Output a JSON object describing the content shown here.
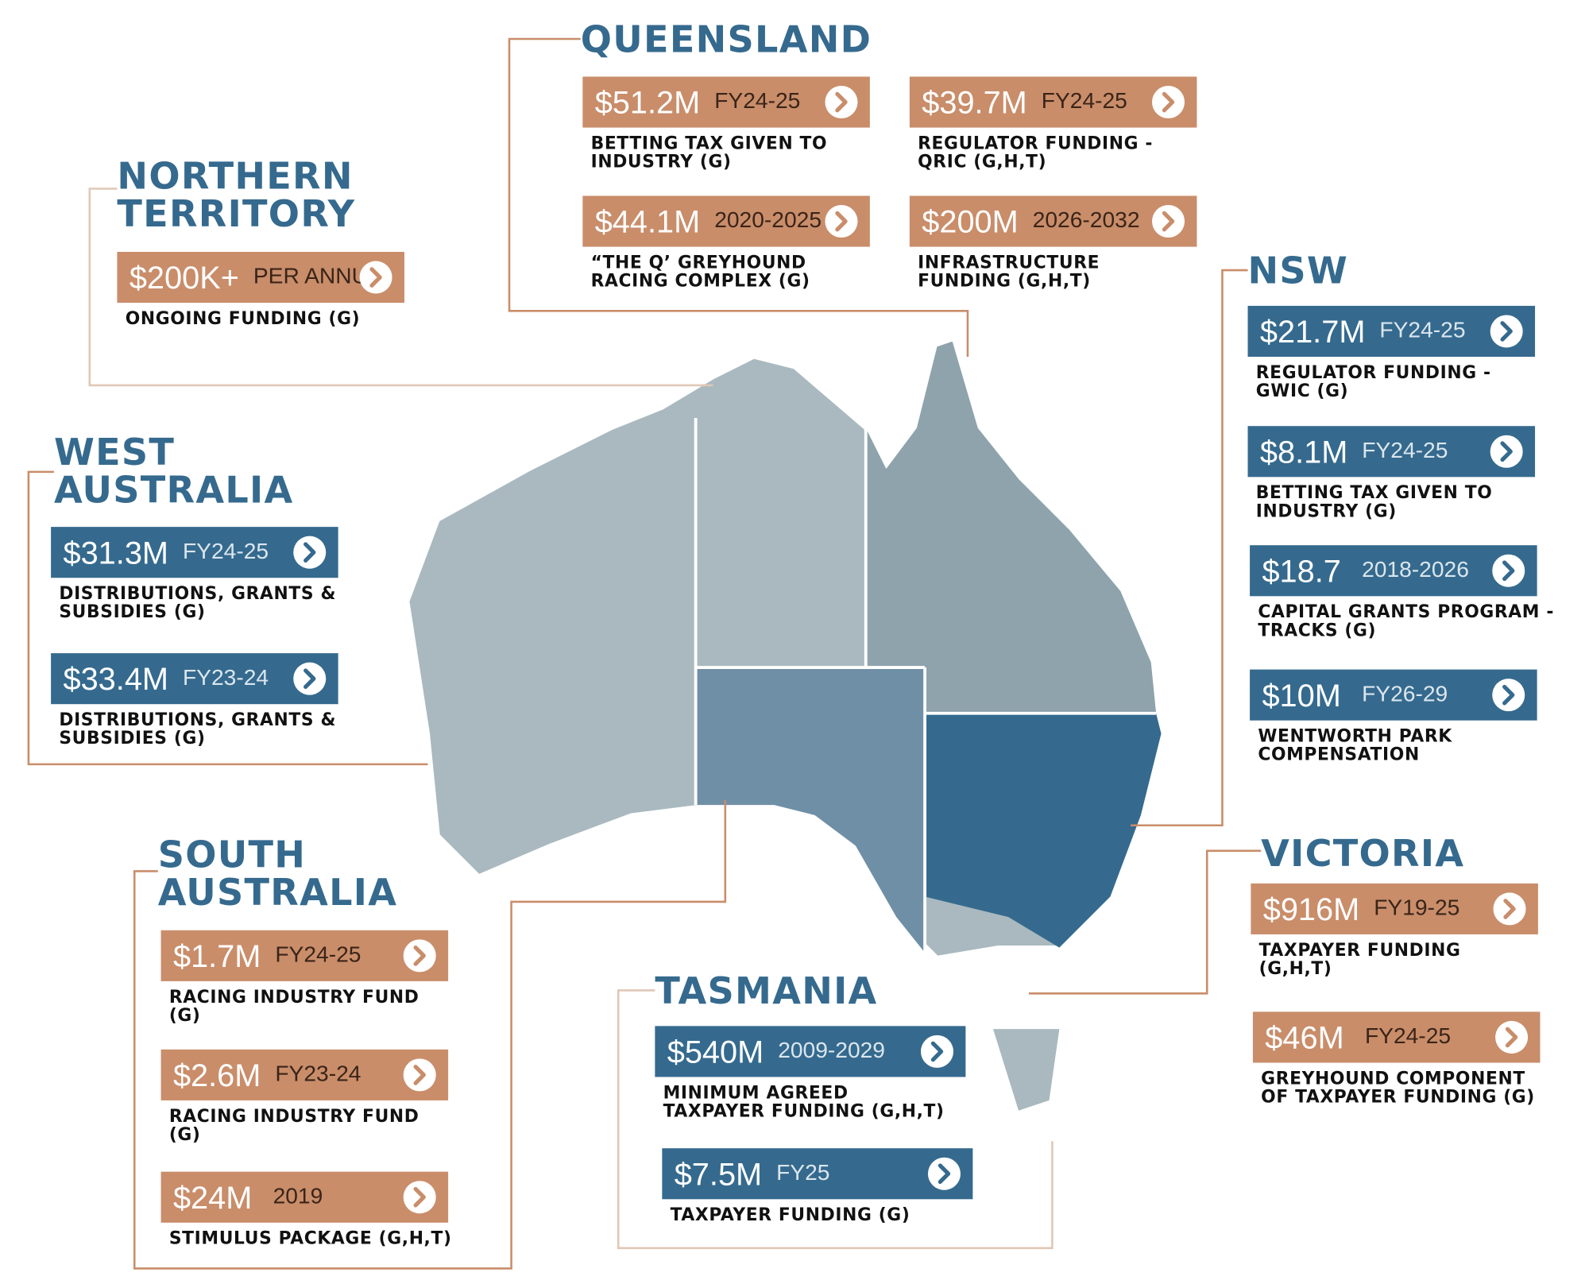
{
  "regions": [
    {
      "name": [
        "QUEENSLAND"
      ],
      "color": "#c98d6a",
      "items": [
        {
          "amount": "$51.2M",
          "period": "FY24-25",
          "description": [
            "BETTING TAX GIVEN TO",
            "INDUSTRY (G)"
          ]
        },
        {
          "amount": "$39.7M",
          "period": "FY24-25",
          "description": [
            "REGULATOR FUNDING -",
            "QRIC (G,H,T)"
          ]
        },
        {
          "amount": "$44.1M",
          "period": "2020-2025",
          "description": [
            "“THE Q’ GREYHOUND",
            "RACING COMPLEX (G)"
          ]
        },
        {
          "amount": "$200M",
          "period": "2026-2032",
          "description": [
            "INFRASTRUCTURE",
            "FUNDING (G,H,T)"
          ]
        }
      ]
    },
    {
      "name": [
        "NORTHERN",
        "TERRITORY"
      ],
      "color": "#c98d6a",
      "items": [
        {
          "amount": "$200K+",
          "period": "PER ANNUM",
          "description": [
            "ONGOING FUNDING (G)"
          ]
        }
      ]
    },
    {
      "name": [
        "WEST",
        "AUSTRALIA"
      ],
      "color": "#356a8e",
      "items": [
        {
          "amount": "$31.3M",
          "period": "FY24-25",
          "description": [
            "DISTRIBUTIONS, GRANTS &",
            "SUBSIDIES (G)"
          ]
        },
        {
          "amount": "$33.4M",
          "period": "FY23-24",
          "description": [
            "DISTRIBUTIONS, GRANTS &",
            "SUBSIDIES (G)"
          ]
        }
      ]
    },
    {
      "name": [
        "SOUTH",
        "AUSTRALIA"
      ],
      "color": "#c98d6a",
      "items": [
        {
          "amount": "$1.7M",
          "period": "FY24-25",
          "description": [
            "RACING INDUSTRY FUND",
            "(G)"
          ]
        },
        {
          "amount": "$2.6M",
          "period": "FY23-24",
          "description": [
            "RACING INDUSTRY FUND",
            "(G)"
          ]
        },
        {
          "amount": "$24M",
          "period": "2019",
          "description": [
            "STIMULUS PACKAGE (G,H,T)"
          ]
        }
      ]
    },
    {
      "name": [
        "TASMANIA"
      ],
      "color": "#356a8e",
      "items": [
        {
          "amount": "$540M",
          "period": "2009-2029",
          "description": [
            "MINIMUM AGREED",
            "TAXPAYER FUNDING (G,H,T)"
          ]
        },
        {
          "amount": "$7.5M",
          "period": "FY25",
          "description": [
            "TAXPAYER FUNDING (G)"
          ]
        }
      ]
    },
    {
      "name": [
        "NSW"
      ],
      "color": "#356a8e",
      "items": [
        {
          "amount": "$21.7M",
          "period": "FY24-25",
          "description": [
            "REGULATOR FUNDING -",
            "GWIC (G)"
          ]
        },
        {
          "amount": "$8.1M",
          "period": "FY24-25",
          "description": [
            "BETTING TAX GIVEN TO",
            "INDUSTRY (G)"
          ]
        },
        {
          "amount": "$18.7",
          "period": "2018-2026",
          "description": [
            "CAPITAL GRANTS PROGRAM -",
            "TRACKS (G)"
          ]
        },
        {
          "amount": "$10M",
          "period": "FY26-29",
          "description": [
            "WENTWORTH PARK",
            "COMPENSATION"
          ]
        }
      ]
    },
    {
      "name": [
        "VICTORIA"
      ],
      "color": "#c98d6a",
      "items": [
        {
          "amount": "$916M",
          "period": "FY19-25",
          "description": [
            "TAXPAYER FUNDING",
            "(G,H,T)"
          ]
        },
        {
          "amount": "$46M",
          "period": "FY24-25",
          "description": [
            "GREYHOUND COMPONENT",
            "OF TAXPAYER FUNDING (G)"
          ]
        }
      ]
    }
  ]
}
